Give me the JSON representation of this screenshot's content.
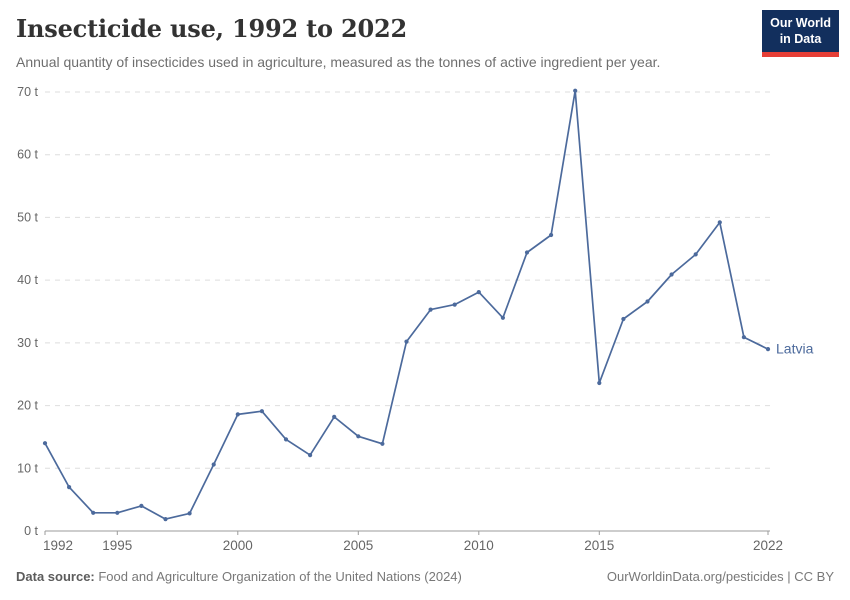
{
  "header": {
    "title": "Insecticide use, 1992 to 2022",
    "subtitle": "Annual quantity of insecticides used in agriculture, measured as the tonnes of active ingredient per year.",
    "logo": {
      "line1": "Our World",
      "line2": "in Data"
    }
  },
  "footer": {
    "source_label": "Data source:",
    "source_text": " Food and Agriculture Organization of the United Nations (2024)",
    "attribution": "OurWorldinData.org/pesticides | CC BY"
  },
  "chart_data": {
    "type": "line",
    "title": "Insecticide use, 1992 to 2022",
    "unit": "tonnes",
    "ytick_suffix": " t",
    "ylim": [
      0,
      70
    ],
    "yticks": [
      0,
      10,
      20,
      30,
      40,
      50,
      60,
      70
    ],
    "xticks": [
      1992,
      1995,
      2000,
      2005,
      2010,
      2015,
      2022
    ],
    "grid": "dashed-horizontal",
    "legend_position": "end-of-line-label",
    "x": [
      1992,
      1993,
      1994,
      1995,
      1996,
      1997,
      1998,
      1999,
      2000,
      2001,
      2002,
      2003,
      2004,
      2005,
      2006,
      2007,
      2008,
      2009,
      2010,
      2011,
      2012,
      2013,
      2014,
      2015,
      2016,
      2017,
      2018,
      2019,
      2020,
      2021,
      2022
    ],
    "series": [
      {
        "name": "Latvia",
        "color": "#4C6A9C",
        "values": [
          14,
          7,
          2.9,
          2.9,
          4,
          1.9,
          2.8,
          10.6,
          18.6,
          19.1,
          14.6,
          12.1,
          18.2,
          15.1,
          13.9,
          30.2,
          35.3,
          36.1,
          38.1,
          34,
          44.4,
          47.2,
          70.2,
          23.6,
          33.8,
          36.6,
          40.9,
          44.1,
          49.2,
          30.9,
          29
        ]
      }
    ],
    "colors": {
      "line": "#4C6A9C",
      "gridline": "#dedede",
      "axis": "#9b9b9b",
      "tick_label": "#666666"
    }
  }
}
